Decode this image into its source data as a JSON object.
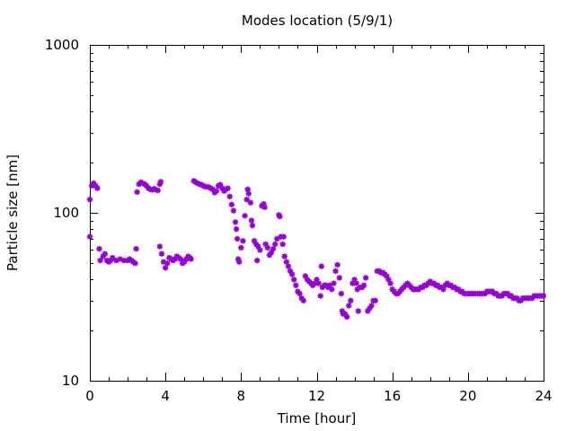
{
  "chart_data": {
    "type": "scatter",
    "title": "Modes location (5/9/1)",
    "xlabel": "Time [hour]",
    "ylabel": "Particle size [nm]",
    "xlim": [
      0,
      24
    ],
    "ylim": [
      10,
      1000
    ],
    "yscale": "log",
    "xticks": [
      0,
      4,
      8,
      12,
      16,
      20,
      24
    ],
    "yticks": [
      10,
      100,
      1000
    ],
    "grid": false,
    "marker": "asterisk",
    "color": "#9400d3",
    "points": [
      [
        0.0,
        72
      ],
      [
        0.0,
        120
      ],
      [
        0.1,
        145
      ],
      [
        0.2,
        150
      ],
      [
        0.3,
        145
      ],
      [
        0.4,
        140
      ],
      [
        0.5,
        61
      ],
      [
        0.55,
        52
      ],
      [
        0.7,
        55
      ],
      [
        0.8,
        57
      ],
      [
        0.9,
        52
      ],
      [
        1.0,
        51
      ],
      [
        1.1,
        52
      ],
      [
        1.2,
        54
      ],
      [
        1.4,
        52
      ],
      [
        1.6,
        53
      ],
      [
        1.8,
        52
      ],
      [
        2.0,
        52
      ],
      [
        2.1,
        53
      ],
      [
        2.2,
        52
      ],
      [
        2.3,
        51
      ],
      [
        2.4,
        50
      ],
      [
        2.45,
        61
      ],
      [
        2.5,
        133
      ],
      [
        2.6,
        148
      ],
      [
        2.7,
        152
      ],
      [
        2.8,
        150
      ],
      [
        2.9,
        148
      ],
      [
        3.0,
        145
      ],
      [
        3.1,
        140
      ],
      [
        3.2,
        138
      ],
      [
        3.3,
        137
      ],
      [
        3.4,
        139
      ],
      [
        3.5,
        137
      ],
      [
        3.6,
        136
      ],
      [
        3.7,
        148
      ],
      [
        3.75,
        153
      ],
      [
        3.7,
        63
      ],
      [
        3.8,
        57
      ],
      [
        3.9,
        51
      ],
      [
        4.0,
        47
      ],
      [
        4.1,
        50
      ],
      [
        4.2,
        54
      ],
      [
        4.3,
        53
      ],
      [
        4.4,
        52
      ],
      [
        4.5,
        53
      ],
      [
        4.6,
        55
      ],
      [
        4.7,
        54
      ],
      [
        4.8,
        53
      ],
      [
        4.9,
        50
      ],
      [
        5.0,
        51
      ],
      [
        5.1,
        53
      ],
      [
        5.2,
        55
      ],
      [
        5.3,
        54
      ],
      [
        5.35,
        53
      ],
      [
        5.5,
        155
      ],
      [
        5.6,
        152
      ],
      [
        5.7,
        150
      ],
      [
        5.8,
        148
      ],
      [
        5.9,
        147
      ],
      [
        6.0,
        145
      ],
      [
        6.1,
        143
      ],
      [
        6.2,
        143
      ],
      [
        6.3,
        142
      ],
      [
        6.4,
        140
      ],
      [
        6.5,
        138
      ],
      [
        6.6,
        132
      ],
      [
        6.7,
        135
      ],
      [
        6.8,
        145
      ],
      [
        6.9,
        147
      ],
      [
        7.0,
        140
      ],
      [
        7.1,
        135
      ],
      [
        7.2,
        138
      ],
      [
        7.3,
        140
      ],
      [
        7.4,
        125
      ],
      [
        7.5,
        112
      ],
      [
        7.6,
        103
      ],
      [
        7.7,
        88
      ],
      [
        7.75,
        80
      ],
      [
        7.8,
        70
      ],
      [
        7.85,
        53
      ],
      [
        7.9,
        51
      ],
      [
        8.0,
        62
      ],
      [
        8.1,
        68
      ],
      [
        8.2,
        96
      ],
      [
        8.3,
        120
      ],
      [
        8.35,
        138
      ],
      [
        8.4,
        130
      ],
      [
        8.5,
        115
      ],
      [
        8.55,
        90
      ],
      [
        8.6,
        84
      ],
      [
        8.7,
        68
      ],
      [
        8.8,
        65
      ],
      [
        8.85,
        52
      ],
      [
        8.9,
        63
      ],
      [
        9.0,
        60
      ],
      [
        9.1,
        110
      ],
      [
        9.2,
        113
      ],
      [
        9.25,
        108
      ],
      [
        9.3,
        65
      ],
      [
        9.4,
        62
      ],
      [
        9.5,
        56
      ],
      [
        9.6,
        58
      ],
      [
        9.7,
        61
      ],
      [
        9.8,
        65
      ],
      [
        9.9,
        70
      ],
      [
        10.0,
        97
      ],
      [
        10.05,
        95
      ],
      [
        10.1,
        72
      ],
      [
        10.2,
        65
      ],
      [
        10.25,
        72
      ],
      [
        10.3,
        55
      ],
      [
        10.4,
        51
      ],
      [
        10.5,
        48
      ],
      [
        10.6,
        45
      ],
      [
        10.7,
        43
      ],
      [
        10.8,
        40
      ],
      [
        10.9,
        37
      ],
      [
        11.0,
        34
      ],
      [
        11.1,
        33
      ],
      [
        11.2,
        31
      ],
      [
        11.3,
        30
      ],
      [
        11.4,
        42
      ],
      [
        11.5,
        40
      ],
      [
        11.6,
        39
      ],
      [
        11.7,
        38
      ],
      [
        11.8,
        37
      ],
      [
        11.9,
        38
      ],
      [
        12.0,
        40
      ],
      [
        12.1,
        38
      ],
      [
        12.2,
        32
      ],
      [
        12.25,
        48
      ],
      [
        12.3,
        36
      ],
      [
        12.4,
        37
      ],
      [
        12.5,
        37
      ],
      [
        12.6,
        36
      ],
      [
        12.7,
        37
      ],
      [
        12.8,
        35
      ],
      [
        12.9,
        38
      ],
      [
        13.0,
        45
      ],
      [
        13.1,
        49
      ],
      [
        13.2,
        41
      ],
      [
        13.3,
        33
      ],
      [
        13.35,
        26
      ],
      [
        13.4,
        25
      ],
      [
        13.5,
        25
      ],
      [
        13.6,
        24
      ],
      [
        13.7,
        28
      ],
      [
        13.8,
        30
      ],
      [
        13.9,
        38
      ],
      [
        14.0,
        40
      ],
      [
        14.1,
        38
      ],
      [
        14.15,
        35
      ],
      [
        14.2,
        26
      ],
      [
        14.3,
        36
      ],
      [
        14.4,
        36
      ],
      [
        14.5,
        37
      ],
      [
        14.6,
        41
      ],
      [
        14.7,
        26
      ],
      [
        14.8,
        27
      ],
      [
        14.9,
        28
      ],
      [
        15.0,
        30
      ],
      [
        15.1,
        30
      ],
      [
        15.2,
        45
      ],
      [
        15.3,
        45
      ],
      [
        15.4,
        44
      ],
      [
        15.5,
        44
      ],
      [
        15.6,
        43
      ],
      [
        15.7,
        42
      ],
      [
        15.8,
        40
      ],
      [
        15.9,
        38
      ],
      [
        16.0,
        35
      ],
      [
        16.1,
        34
      ],
      [
        16.2,
        33
      ],
      [
        16.3,
        33
      ],
      [
        16.4,
        34
      ],
      [
        16.5,
        35
      ],
      [
        16.6,
        36
      ],
      [
        16.7,
        37
      ],
      [
        16.8,
        38
      ],
      [
        16.9,
        37
      ],
      [
        17.0,
        36
      ],
      [
        17.1,
        35
      ],
      [
        17.2,
        35
      ],
      [
        17.3,
        35
      ],
      [
        17.4,
        35
      ],
      [
        17.5,
        36
      ],
      [
        17.6,
        36
      ],
      [
        17.7,
        37
      ],
      [
        17.8,
        37
      ],
      [
        17.9,
        38
      ],
      [
        18.0,
        39
      ],
      [
        18.1,
        38
      ],
      [
        18.2,
        38
      ],
      [
        18.3,
        37
      ],
      [
        18.4,
        37
      ],
      [
        18.5,
        36
      ],
      [
        18.6,
        36
      ],
      [
        18.7,
        35
      ],
      [
        18.8,
        37
      ],
      [
        18.9,
        38
      ],
      [
        19.0,
        37
      ],
      [
        19.1,
        37
      ],
      [
        19.2,
        36
      ],
      [
        19.3,
        36
      ],
      [
        19.4,
        35
      ],
      [
        19.5,
        35
      ],
      [
        19.6,
        34
      ],
      [
        19.7,
        34
      ],
      [
        19.8,
        33
      ],
      [
        19.9,
        33
      ],
      [
        20.0,
        33
      ],
      [
        20.1,
        33
      ],
      [
        20.2,
        33
      ],
      [
        20.3,
        33
      ],
      [
        20.4,
        33
      ],
      [
        20.5,
        33
      ],
      [
        20.6,
        33
      ],
      [
        20.7,
        33
      ],
      [
        20.8,
        33
      ],
      [
        20.9,
        33
      ],
      [
        21.0,
        34
      ],
      [
        21.1,
        34
      ],
      [
        21.2,
        34
      ],
      [
        21.3,
        34
      ],
      [
        21.4,
        33
      ],
      [
        21.5,
        33
      ],
      [
        21.6,
        32
      ],
      [
        21.7,
        32
      ],
      [
        21.8,
        32
      ],
      [
        21.9,
        33
      ],
      [
        22.0,
        33
      ],
      [
        22.1,
        33
      ],
      [
        22.2,
        32
      ],
      [
        22.3,
        32
      ],
      [
        22.4,
        31
      ],
      [
        22.5,
        31
      ],
      [
        22.6,
        31
      ],
      [
        22.7,
        30
      ],
      [
        22.8,
        30
      ],
      [
        22.9,
        31
      ],
      [
        23.0,
        31
      ],
      [
        23.1,
        31
      ],
      [
        23.2,
        31
      ],
      [
        23.3,
        31
      ],
      [
        23.4,
        31
      ],
      [
        23.5,
        32
      ],
      [
        23.6,
        32
      ],
      [
        23.7,
        32
      ],
      [
        23.8,
        32
      ],
      [
        23.9,
        32
      ],
      [
        24.0,
        32
      ]
    ]
  }
}
